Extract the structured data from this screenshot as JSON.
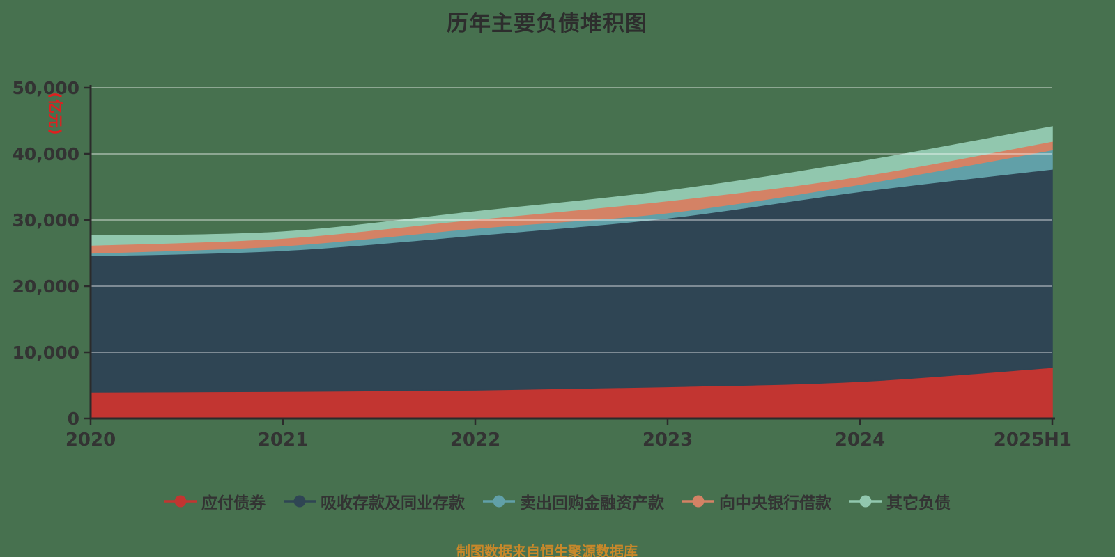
{
  "page": {
    "background": "#47714F"
  },
  "header": {
    "title": "历年主要负债堆积图"
  },
  "footer": {
    "source_note": "制图数据来自恒生聚源数据库",
    "source_note_color": "#c8882a"
  },
  "chart_data": {
    "type": "area",
    "stacked": true,
    "smooth": true,
    "title": "历年主要负债堆积图",
    "x": [
      "2020",
      "2021",
      "2022",
      "2023",
      "2024",
      "2025H1"
    ],
    "y_axis": {
      "unit_label": "(亿元)",
      "unit_label_color": "#e01f1f",
      "min": 0,
      "max": 50000,
      "interval": 10000,
      "tick_labels": [
        "0",
        "10,000",
        "20,000",
        "30,000",
        "40,000",
        "50,000"
      ]
    },
    "grid": true,
    "legend_position": "bottom",
    "series": [
      {
        "name": "应付债券",
        "color": "#c23531",
        "values": [
          4000,
          4100,
          4300,
          4800,
          5600,
          7700
        ]
      },
      {
        "name": "吸收存款及同业存款",
        "color": "#2f4554",
        "values": [
          20600,
          21300,
          23400,
          25500,
          28700,
          30000
        ]
      },
      {
        "name": "卖出回购金融资产款",
        "color": "#61a0a8",
        "values": [
          400,
          700,
          1050,
          800,
          1100,
          2900
        ]
      },
      {
        "name": "向中央银行借款",
        "color": "#d48265",
        "values": [
          1200,
          1150,
          1350,
          1800,
          1200,
          1300
        ]
      },
      {
        "name": "其它负债",
        "color": "#91c7ae",
        "values": [
          1400,
          950,
          1150,
          1500,
          2200,
          2200
        ]
      }
    ],
    "cumulative_totals": [
      27600,
      28200,
      31250,
      34400,
      38800,
      44100
    ],
    "axis_color": "#2b2b2b",
    "tick_label_color": "#333333",
    "gridline_color": "rgba(255,255,255,0.38)"
  }
}
